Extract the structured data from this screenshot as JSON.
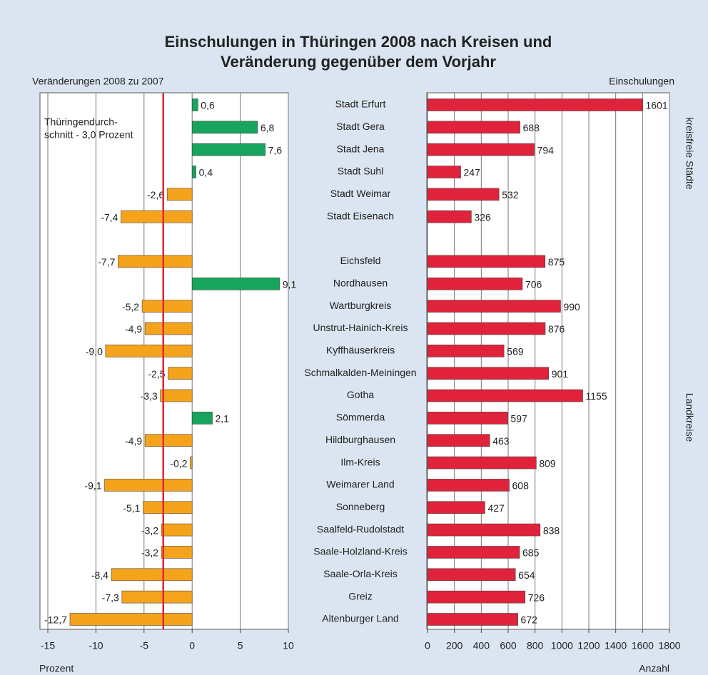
{
  "title": [
    "Einschulungen in Thüringen 2008 nach Kreisen und",
    "Veränderung gegenüber dem Vorjahr"
  ],
  "group_labels": [
    "kreisfreie Städte",
    "Landkreise"
  ],
  "chart_data": [
    {
      "type": "bar",
      "orientation": "horizontal",
      "x_label_top": "Veränderungen 2008 zu 2007",
      "x_label": "Prozent",
      "values": [
        0.6,
        6.8,
        7.6,
        0.4,
        -2.6,
        -7.4,
        null,
        -7.7,
        9.1,
        -5.2,
        -4.9,
        -9.0,
        -2.5,
        -3.3,
        2.1,
        -4.9,
        -0.2,
        -9.1,
        -5.1,
        -3.2,
        -3.2,
        -8.4,
        -7.3,
        -12.7
      ],
      "value_labels": [
        "0,6",
        "6,8",
        "7,6",
        "0,4",
        "-2,6",
        "-7,4",
        null,
        "-7,7",
        "9,1",
        "-5,2",
        "-4,9",
        "-9,0",
        "-2,5",
        "-3,3",
        "2,1",
        "-4,9",
        "-0,2",
        "-9,1",
        "-5,1",
        "-3,2",
        "-3,2",
        "-8,4",
        "-7,3",
        "-12,7"
      ],
      "positive_color": "#17a45c",
      "negative_color": "#f6a31c",
      "xlim": [
        -15,
        10
      ],
      "xticks": [
        -15,
        -10,
        -5,
        0,
        5,
        10
      ],
      "grid": true,
      "reference_line": {
        "value": -3.0,
        "color": "#e3262f",
        "label": [
          "Thüringendurch-",
          "schnitt - 3,0 Prozent"
        ]
      }
    },
    {
      "type": "bar",
      "orientation": "horizontal",
      "x_label_top": "Einschulungen",
      "x_label": "Anzahl",
      "categories": [
        "Stadt Erfurt",
        "Stadt Gera",
        "Stadt Jena",
        "Stadt Suhl",
        "Stadt Weimar",
        "Stadt Eisenach",
        null,
        "Eichsfeld",
        "Nordhausen",
        "Wartburgkreis",
        "Unstrut-Hainich-Kreis",
        "Kyffhäuserkreis",
        "Schmalkalden-Meiningen",
        "Gotha",
        "Sömmerda",
        "Hildburghausen",
        "Ilm-Kreis",
        "Weimarer Land",
        "Sonneberg",
        "Saalfeld-Rudolstadt",
        "Saale-Holzland-Kreis",
        "Saale-Orla-Kreis",
        "Greiz",
        "Altenburger Land"
      ],
      "values": [
        1601,
        688,
        794,
        247,
        532,
        326,
        null,
        875,
        706,
        990,
        876,
        569,
        901,
        1155,
        597,
        463,
        809,
        608,
        427,
        838,
        685,
        654,
        726,
        672
      ],
      "color": "#e0223a",
      "xlim": [
        0,
        1800
      ],
      "xticks": [
        0,
        200,
        400,
        600,
        800,
        1000,
        1200,
        1400,
        1600,
        1800
      ],
      "grid": true
    }
  ]
}
